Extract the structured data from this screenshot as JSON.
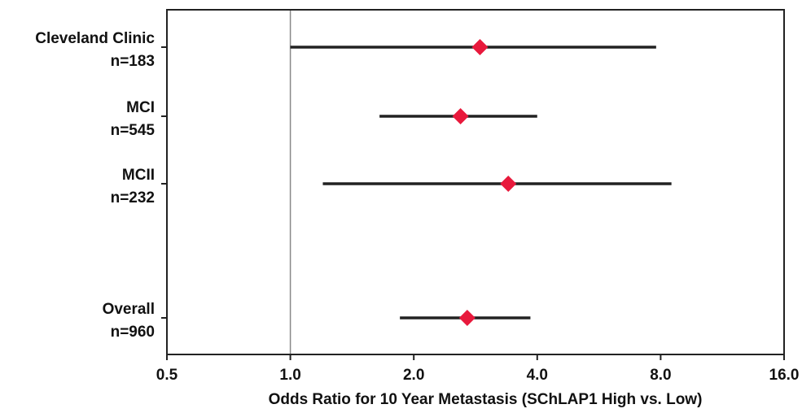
{
  "chart_data": {
    "type": "forest",
    "title": "",
    "xlabel": "Odds Ratio for 10 Year Metastasis (SChLAP1 High vs. Low)",
    "ylabel": "",
    "x_scale": "log2",
    "xlim": [
      0.5,
      16.0
    ],
    "x_ticks": [
      0.5,
      1.0,
      2.0,
      4.0,
      8.0,
      16.0
    ],
    "x_tick_labels": [
      "0.5",
      "1.0",
      "2.0",
      "4.0",
      "8.0",
      "16.0"
    ],
    "reference_line": 1.0,
    "grid": false,
    "legend": "none",
    "rows": [
      {
        "name": "Cleveland Clinic",
        "n_label": "n=183",
        "estimate": 2.9,
        "ci_low": 1.0,
        "ci_high": 7.8
      },
      {
        "name": "MCI",
        "n_label": "n=545",
        "estimate": 2.6,
        "ci_low": 1.65,
        "ci_high": 4.0
      },
      {
        "name": "MCII",
        "n_label": "n=232",
        "estimate": 3.4,
        "ci_low": 1.2,
        "ci_high": 8.5
      },
      {
        "name": "Overall",
        "n_label": "n=960",
        "estimate": 2.7,
        "ci_low": 1.85,
        "ci_high": 3.85
      }
    ]
  },
  "colors": {
    "marker": "#e8193c",
    "line": "#222222",
    "axis": "#222222",
    "reference_line": "#888888",
    "text": "#111111"
  }
}
